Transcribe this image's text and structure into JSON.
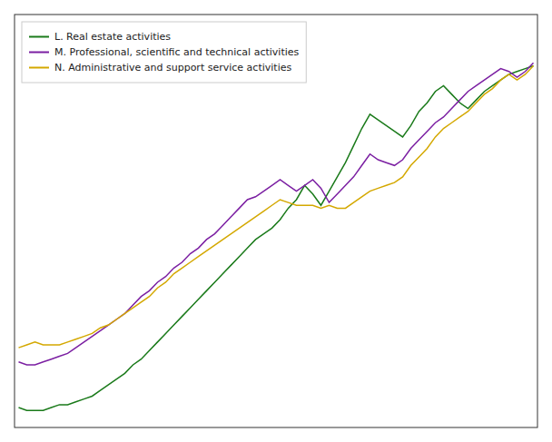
{
  "chart_data": {
    "type": "line",
    "categories": [
      null,
      null,
      null,
      null,
      null,
      null,
      null,
      null,
      null,
      null,
      null,
      null,
      null,
      null,
      null,
      null,
      null,
      null,
      null,
      null,
      null,
      null,
      null,
      null,
      null,
      null,
      null,
      null,
      null,
      null,
      null,
      null,
      null,
      null,
      null,
      null,
      null,
      null,
      null,
      null,
      null,
      null,
      null,
      null,
      null,
      null,
      null,
      null,
      null,
      null,
      null,
      null,
      null,
      null,
      null,
      null,
      null,
      null,
      null,
      null,
      null,
      null,
      null,
      null
    ],
    "series": [
      {
        "name": "L. Real estate activities",
        "color": "#1a7a1a",
        "values": [
          62,
          61,
          61,
          61,
          62,
          63,
          63,
          64,
          65,
          66,
          68,
          70,
          72,
          74,
          77,
          79,
          82,
          85,
          88,
          91,
          94,
          97,
          100,
          103,
          106,
          109,
          112,
          115,
          118,
          121,
          123,
          125,
          128,
          132,
          135,
          140,
          137,
          133,
          138,
          143,
          148,
          154,
          160,
          165,
          163,
          161,
          159,
          157,
          161,
          166,
          169,
          173,
          175,
          172,
          169,
          167,
          170,
          173,
          175,
          177,
          179,
          180,
          181,
          182
        ]
      },
      {
        "name": "M. Professional, scientific and technical activities",
        "color": "#7b1fa2",
        "values": [
          78,
          77,
          77,
          78,
          79,
          80,
          81,
          83,
          85,
          87,
          89,
          91,
          93,
          95,
          98,
          101,
          103,
          106,
          108,
          111,
          113,
          116,
          118,
          121,
          123,
          126,
          129,
          132,
          135,
          136,
          138,
          140,
          142,
          140,
          138,
          140,
          142,
          139,
          134,
          137,
          140,
          143,
          147,
          151,
          149,
          148,
          147,
          149,
          153,
          156,
          159,
          162,
          164,
          167,
          170,
          173,
          175,
          177,
          179,
          181,
          180,
          178,
          180,
          183
        ]
      },
      {
        "name": "N. Administrative and support service activities",
        "color": "#d4a800",
        "values": [
          83,
          84,
          85,
          84,
          84,
          84,
          85,
          86,
          87,
          88,
          90,
          91,
          93,
          95,
          97,
          99,
          101,
          104,
          106,
          109,
          111,
          113,
          115,
          117,
          119,
          121,
          123,
          125,
          127,
          129,
          131,
          133,
          135,
          134,
          133,
          133,
          133,
          132,
          133,
          132,
          132,
          134,
          136,
          138,
          139,
          140,
          141,
          143,
          147,
          150,
          153,
          157,
          160,
          162,
          164,
          166,
          169,
          172,
          174,
          177,
          179,
          177,
          179,
          182
        ]
      }
    ],
    "ylim": [
      55,
      200
    ],
    "grid": false,
    "tick_labels": false,
    "legend": "upper left"
  }
}
